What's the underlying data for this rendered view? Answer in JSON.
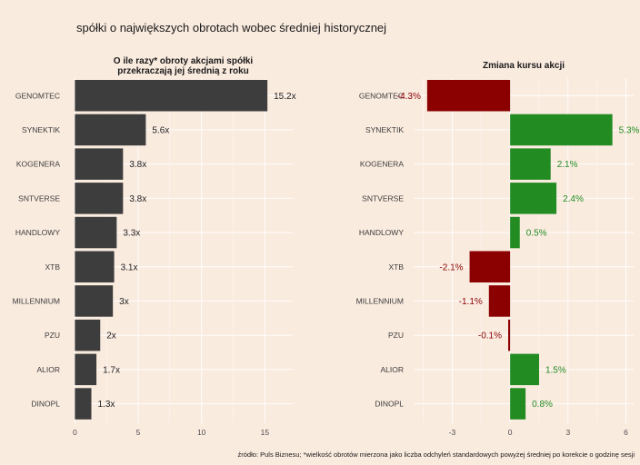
{
  "title": "spółki o największych obrotach wobec średniej historycznej",
  "caption": "źródło: Puls Biznesu; *wielkość obrotów mierzona jako liczba odchyleń standardowych powyżej średniej po korekcie o godzinę sesji",
  "colors": {
    "background": "#FAEBDF",
    "bar_dark": "#3D3D3D",
    "positive": "#228B22",
    "negative": "#8B0000"
  },
  "chart_data": [
    {
      "type": "bar",
      "orientation": "horizontal",
      "title": "O ile razy* obroty akcjami spółki\nprzekraczają jej średnią z roku",
      "categories": [
        "GENOMTEC",
        "SYNEKTIK",
        "KOGENERA",
        "SNTVERSE",
        "HANDLOWY",
        "XTB",
        "MILLENNIUM",
        "PZU",
        "ALIOR",
        "DINOPL"
      ],
      "values": [
        15.2,
        5.6,
        3.8,
        3.8,
        3.3,
        3.1,
        3.0,
        2.0,
        1.7,
        1.3
      ],
      "labels": [
        "15.2x",
        "5.6x",
        "3.8x",
        "3.8x",
        "3.3x",
        "3.1x",
        "3x",
        "2x",
        "1.7x",
        "1.3x"
      ],
      "xlim": [
        -0.1,
        17.2
      ],
      "xticks": [
        0,
        5,
        10,
        15
      ],
      "grid": true
    },
    {
      "type": "bar",
      "orientation": "horizontal",
      "title": "Zmiana kursu akcji",
      "categories": [
        "GENOMTEC",
        "SYNEKTIK",
        "KOGENERA",
        "SNTVERSE",
        "HANDLOWY",
        "XTB",
        "MILLENNIUM",
        "PZU",
        "ALIOR",
        "DINOPL"
      ],
      "values": [
        -4.3,
        5.3,
        2.1,
        2.4,
        0.5,
        -2.1,
        -1.1,
        -0.1,
        1.5,
        0.8
      ],
      "labels": [
        "-4.3%",
        "5.3%",
        "2.1%",
        "2.4%",
        "0.5%",
        "-2.1%",
        "-1.1%",
        "-0.1%",
        "1.5%",
        "0.8%"
      ],
      "xlim": [
        -5.0,
        6.4
      ],
      "xticks": [
        -3,
        0,
        3,
        6
      ],
      "grid": true
    }
  ]
}
